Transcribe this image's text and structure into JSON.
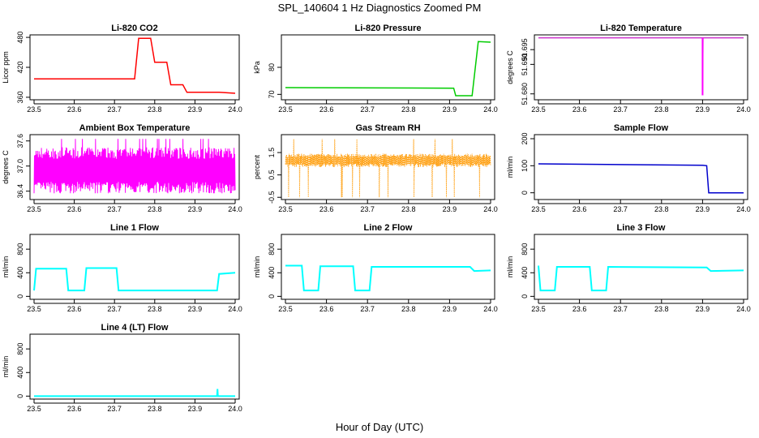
{
  "title": "SPL_140604  1 Hz Diagnostics Zoomed PM",
  "x_axis_label": "Hour of Day (UTC)",
  "chart_data": [
    {
      "type": "line",
      "title": "Li-820 CO2",
      "ylabel": "Licor ppm",
      "color": "#ff0000",
      "xlim": [
        23.5,
        24.0
      ],
      "ylim": [
        355,
        485
      ],
      "x_ticks": [
        "23.5",
        "23.6",
        "23.7",
        "23.8",
        "23.9",
        "24.0"
      ],
      "y_ticks": [
        "360",
        "420",
        "480"
      ],
      "series": [
        {
          "x": [
            23.5,
            23.75,
            23.76,
            23.79,
            23.8,
            23.83,
            23.84,
            23.87,
            23.88,
            23.96,
            24.0
          ],
          "values": [
            397,
            397,
            478,
            478,
            430,
            430,
            385,
            385,
            370,
            370,
            368
          ]
        }
      ]
    },
    {
      "type": "line",
      "title": "Li-820 Pressure",
      "ylabel": "kPa",
      "color": "#00cc00",
      "xlim": [
        23.5,
        24.0
      ],
      "ylim": [
        68,
        92
      ],
      "x_ticks": [
        "23.5",
        "23.6",
        "23.7",
        "23.8",
        "23.9",
        "24.0"
      ],
      "y_ticks": [
        "70",
        "80"
      ],
      "series": [
        {
          "x": [
            23.5,
            23.91,
            23.915,
            23.955,
            23.97,
            24.0
          ],
          "values": [
            72.5,
            72.3,
            69.5,
            69.5,
            89.5,
            89.3
          ]
        }
      ]
    },
    {
      "type": "line",
      "title": "Li-820 Temperature",
      "ylabel": "degrees C",
      "color": "#cc33cc",
      "color_spike": "#ff00ff",
      "xlim": [
        23.5,
        24.0
      ],
      "ylim": [
        51.678,
        51.7
      ],
      "x_ticks": [
        "23.5",
        "23.6",
        "23.7",
        "23.8",
        "23.9",
        "24.0"
      ],
      "y_ticks": [
        "51.680",
        "51.690",
        "51.695"
      ],
      "series": [
        {
          "x": [
            23.5,
            23.899,
            23.9,
            23.9,
            23.901,
            24.0
          ],
          "values": [
            51.699,
            51.699,
            51.699,
            51.6795,
            51.699,
            51.699
          ]
        }
      ]
    },
    {
      "type": "line",
      "title": "Ambient Box Temperature",
      "ylabel": "degrees C",
      "color": "#ff00ff",
      "xlim": [
        23.5,
        24.0
      ],
      "ylim": [
        36.2,
        37.75
      ],
      "x_ticks": [
        "23.5",
        "23.6",
        "23.7",
        "23.8",
        "23.9",
        "24.0"
      ],
      "y_ticks": [
        "36.4",
        "37.0",
        "37.6"
      ],
      "band": {
        "low": 36.35,
        "high": 37.45,
        "spike_high": 37.65
      }
    },
    {
      "type": "scatter",
      "title": "Gas Stream RH",
      "ylabel": "percent",
      "color": "#ff9900",
      "xlim": [
        23.5,
        24.0
      ],
      "ylim": [
        -0.6,
        2.3
      ],
      "x_ticks": [
        "23.5",
        "23.6",
        "23.7",
        "23.8",
        "23.9",
        "24.0"
      ],
      "y_ticks": [
        "-0.5",
        "0.5",
        "1.5"
      ],
      "band": {
        "low": 0.85,
        "high": 1.45,
        "spike_low": -0.5,
        "spike_high": 2.1
      }
    },
    {
      "type": "line",
      "title": "Sample Flow",
      "ylabel": "ml/min",
      "color": "#0000cc",
      "xlim": [
        23.5,
        24.0
      ],
      "ylim": [
        -25,
        215
      ],
      "x_ticks": [
        "23.5",
        "23.6",
        "23.7",
        "23.8",
        "23.9",
        "24.0"
      ],
      "y_ticks": [
        "0",
        "100",
        "200"
      ],
      "series": [
        {
          "x": [
            23.5,
            23.9,
            23.91,
            23.915,
            24.0
          ],
          "values": [
            107,
            102,
            100,
            0,
            0
          ]
        }
      ]
    },
    {
      "type": "line",
      "title": "Line 1 Flow",
      "ylabel": "ml/min",
      "color": "#00ffff",
      "xlim": [
        23.5,
        24.0
      ],
      "ylim": [
        -50,
        1050
      ],
      "x_ticks": [
        "23.5",
        "23.6",
        "23.7",
        "23.8",
        "23.9",
        "24.0"
      ],
      "y_ticks": [
        "0",
        "400",
        "800"
      ],
      "series": [
        {
          "x": [
            23.5,
            23.505,
            23.58,
            23.585,
            23.625,
            23.63,
            23.705,
            23.71,
            23.955,
            23.96,
            24.0
          ],
          "values": [
            100,
            470,
            470,
            100,
            100,
            480,
            480,
            100,
            100,
            380,
            400
          ]
        }
      ]
    },
    {
      "type": "line",
      "title": "Line 2 Flow",
      "ylabel": "ml/min",
      "color": "#00ffff",
      "xlim": [
        23.5,
        24.0
      ],
      "ylim": [
        -50,
        1050
      ],
      "x_ticks": [
        "23.5",
        "23.6",
        "23.7",
        "23.8",
        "23.9",
        "24.0"
      ],
      "y_ticks": [
        "0",
        "400",
        "800"
      ],
      "series": [
        {
          "x": [
            23.5,
            23.54,
            23.545,
            23.58,
            23.585,
            23.665,
            23.67,
            23.705,
            23.71,
            23.95,
            23.96,
            24.0
          ],
          "values": [
            520,
            520,
            100,
            100,
            510,
            510,
            100,
            100,
            500,
            500,
            430,
            440
          ]
        }
      ]
    },
    {
      "type": "line",
      "title": "Line 3 Flow",
      "ylabel": "ml/min",
      "color": "#00ffff",
      "xlim": [
        23.5,
        24.0
      ],
      "ylim": [
        -50,
        1050
      ],
      "x_ticks": [
        "23.5",
        "23.6",
        "23.7",
        "23.8",
        "23.9",
        "24.0"
      ],
      "y_ticks": [
        "0",
        "400",
        "800"
      ],
      "series": [
        {
          "x": [
            23.5,
            23.505,
            23.54,
            23.545,
            23.625,
            23.63,
            23.665,
            23.67,
            23.91,
            23.92,
            24.0
          ],
          "values": [
            520,
            100,
            100,
            500,
            500,
            100,
            100,
            500,
            490,
            430,
            440
          ]
        }
      ]
    },
    {
      "type": "line",
      "title": "Line 4 (LT) Flow",
      "ylabel": "ml/min",
      "color": "#00ffff",
      "xlim": [
        23.5,
        24.0
      ],
      "ylim": [
        -50,
        1050
      ],
      "x_ticks": [
        "23.5",
        "23.6",
        "23.7",
        "23.8",
        "23.9",
        "24.0"
      ],
      "y_ticks": [
        "0",
        "400",
        "800"
      ],
      "series": [
        {
          "x": [
            23.5,
            23.955,
            23.956,
            23.957,
            23.958,
            24.0
          ],
          "values": [
            0,
            0,
            120,
            0,
            0,
            0
          ]
        }
      ]
    }
  ]
}
